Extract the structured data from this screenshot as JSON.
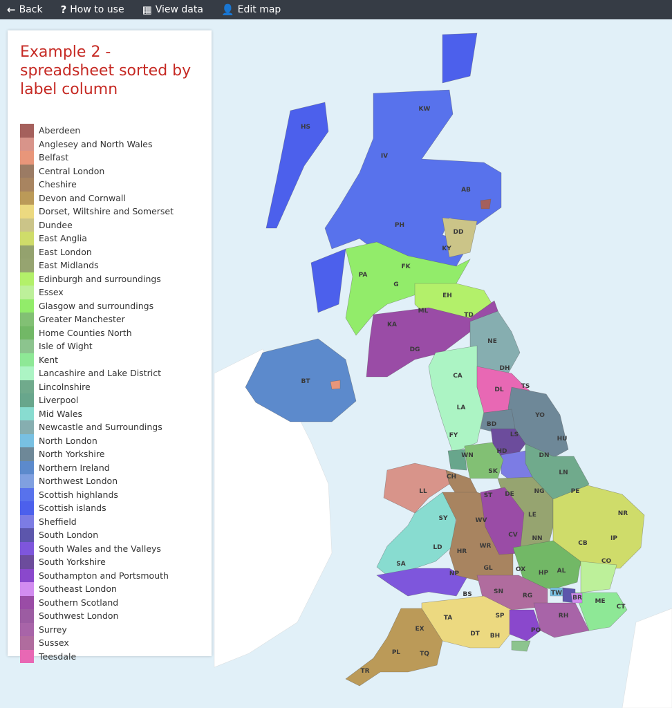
{
  "toolbar": {
    "back": "Back",
    "how_to_use": "How to use",
    "view_data": "View data",
    "edit_map": "Edit map"
  },
  "legend": {
    "title": "Example 2 - spreadsheet sorted by label column",
    "items": [
      {
        "label": "Aberdeen",
        "color": "#a5605c"
      },
      {
        "label": "Anglesey and North Wales",
        "color": "#d8948a"
      },
      {
        "label": "Belfast",
        "color": "#e8967a"
      },
      {
        "label": "Central London",
        "color": "#9b7b64"
      },
      {
        "label": "Cheshire",
        "color": "#a88460"
      },
      {
        "label": "Devon and Cornwall",
        "color": "#bb9a58"
      },
      {
        "label": "Dorset, Wiltshire and Somerset",
        "color": "#ecd980"
      },
      {
        "label": "Dundee",
        "color": "#cbc488"
      },
      {
        "label": "East Anglia",
        "color": "#cfdc6a"
      },
      {
        "label": "East London",
        "color": "#94a26e"
      },
      {
        "label": "East Midlands",
        "color": "#96a470"
      },
      {
        "label": "Edinburgh and surroundings",
        "color": "#b3f06a"
      },
      {
        "label": "Essex",
        "color": "#bdf09a"
      },
      {
        "label": "Glasgow and surroundings",
        "color": "#92ec6a"
      },
      {
        "label": "Greater Manchester",
        "color": "#82c074"
      },
      {
        "label": "Home Counties North",
        "color": "#72b866"
      },
      {
        "label": "Isle of Wight",
        "color": "#8cc48e"
      },
      {
        "label": "Kent",
        "color": "#8ee896"
      },
      {
        "label": "Lancashire and Lake District",
        "color": "#acf4c4"
      },
      {
        "label": "Lincolnshire",
        "color": "#70aa8c"
      },
      {
        "label": "Liverpool",
        "color": "#68a68c"
      },
      {
        "label": "Mid Wales",
        "color": "#88dcd0"
      },
      {
        "label": "Newcastle and Surroundings",
        "color": "#86aeb0"
      },
      {
        "label": "North London",
        "color": "#78c0e2"
      },
      {
        "label": "North Yorkshire",
        "color": "#6e8898"
      },
      {
        "label": "Northern Ireland",
        "color": "#5c8acc"
      },
      {
        "label": "Northwest London",
        "color": "#80a0e0"
      },
      {
        "label": "Scottish highlands",
        "color": "#5872ec"
      },
      {
        "label": "Scottish islands",
        "color": "#4c60ec"
      },
      {
        "label": "Sheffield",
        "color": "#7c7ce4"
      },
      {
        "label": "South London",
        "color": "#5c56ac"
      },
      {
        "label": "South Wales and the Valleys",
        "color": "#7e56dc"
      },
      {
        "label": "South Yorkshire",
        "color": "#6c4c9c"
      },
      {
        "label": "Southampton and Portsmouth",
        "color": "#8a48cc"
      },
      {
        "label": "Southeast London",
        "color": "#d28cf0"
      },
      {
        "label": "Southern Scotland",
        "color": "#9a4ca6"
      },
      {
        "label": "Southwest London",
        "color": "#9c5ca2"
      },
      {
        "label": "Surrey",
        "color": "#a864a8"
      },
      {
        "label": "Sussex",
        "color": "#b06c9e"
      },
      {
        "label": "Teesdale",
        "color": "#e868b4"
      }
    ]
  },
  "map": {
    "sea_color": "#e1f0f8",
    "other_land_color": "#ffffff",
    "postcode_labels": [
      "KW",
      "HS",
      "IV",
      "AB",
      "PH",
      "DD",
      "KY",
      "PA",
      "FK",
      "G",
      "EH",
      "ML",
      "KA",
      "TD",
      "DG",
      "NE",
      "BT",
      "CA",
      "DH",
      "TS",
      "DL",
      "LA",
      "BD",
      "YO",
      "HD",
      "LS",
      "FY",
      "HU",
      "WN",
      "CH",
      "SK",
      "DN",
      "LN",
      "LL",
      "ST",
      "DE",
      "NG",
      "PE",
      "NR",
      "SY",
      "WV",
      "LE",
      "WR",
      "CV",
      "NN",
      "IP",
      "CB",
      "LD",
      "HR",
      "SA",
      "NP",
      "GL",
      "OX",
      "HP",
      "AL",
      "CO",
      "BS",
      "SN",
      "RG",
      "TW",
      "BR",
      "ME",
      "CT",
      "TA",
      "SP",
      "RH",
      "EX",
      "DT",
      "BH",
      "PO",
      "PL",
      "TQ",
      "TR"
    ]
  }
}
